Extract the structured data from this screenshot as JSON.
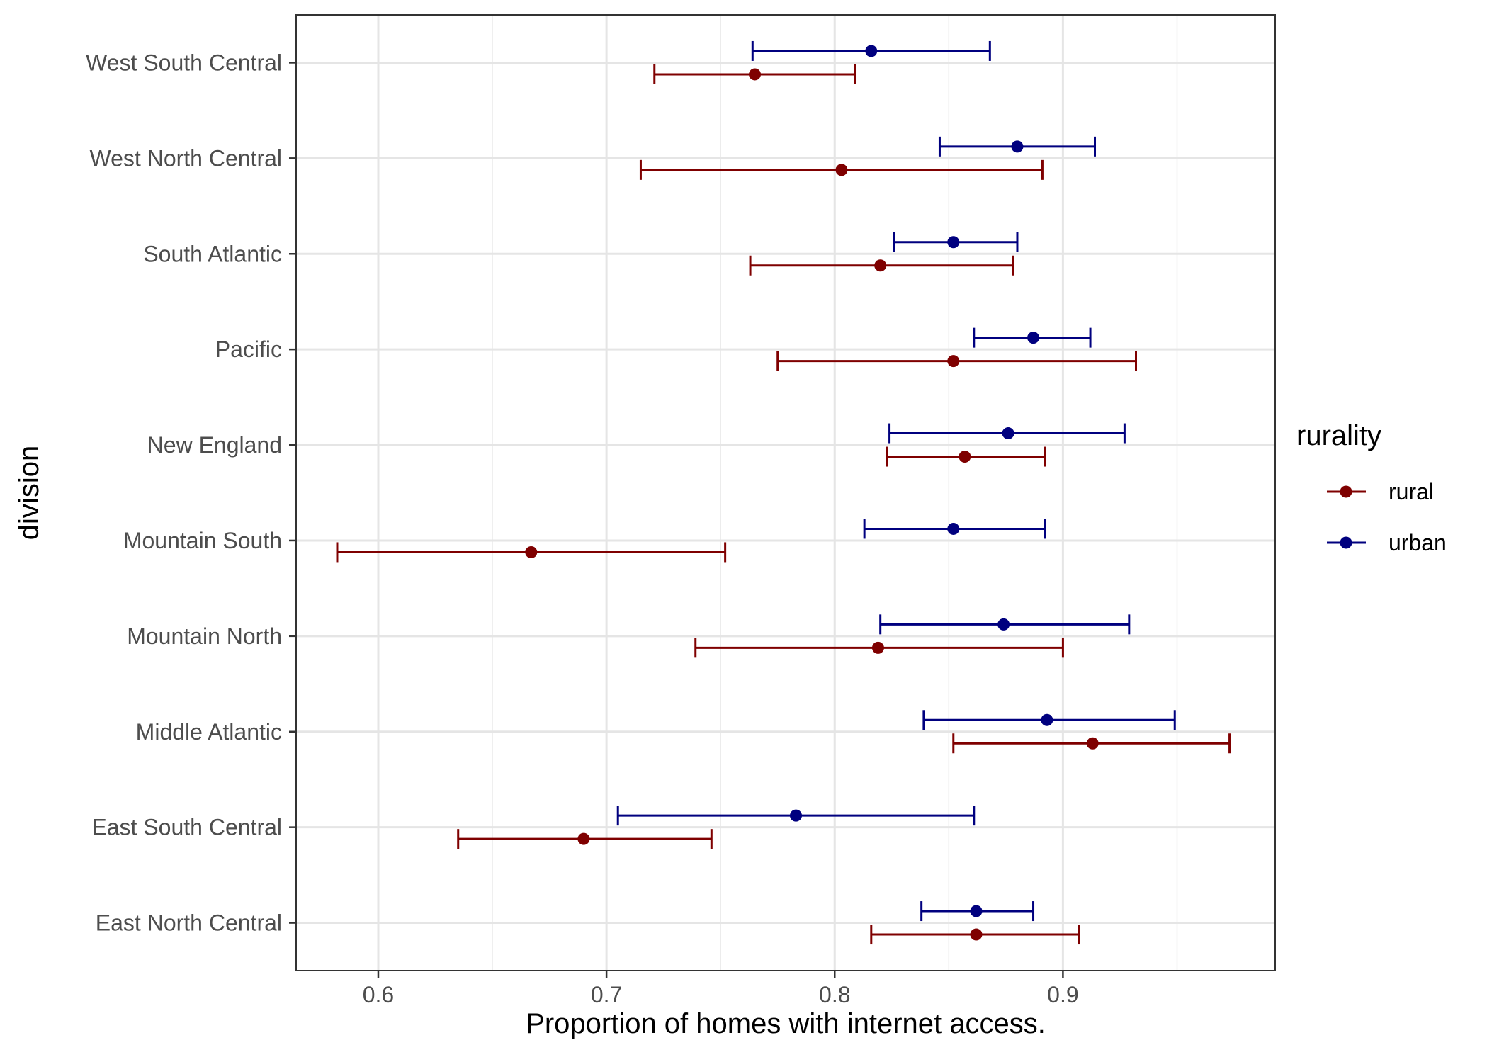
{
  "chart_data": {
    "type": "errorbar",
    "xlabel": "Proportion of homes with internet access.",
    "ylabel": "division",
    "xlim": [
      0.564,
      0.993
    ],
    "x_ticks": [
      0.6,
      0.7,
      0.8,
      0.9
    ],
    "x_tick_labels": [
      "0.6",
      "0.7",
      "0.8",
      "0.9"
    ],
    "categories": [
      "East North Central",
      "East South Central",
      "Middle Atlantic",
      "Mountain North",
      "Mountain South",
      "New England",
      "Pacific",
      "South Atlantic",
      "West North Central",
      "West South Central"
    ],
    "grid": true,
    "legend": {
      "title": "rurality",
      "position": "right"
    },
    "series": [
      {
        "name": "rural",
        "color": "#7f0000",
        "values": [
          0.862,
          0.69,
          0.913,
          0.819,
          0.667,
          0.857,
          0.852,
          0.82,
          0.803,
          0.765
        ],
        "lower": [
          0.816,
          0.635,
          0.852,
          0.739,
          0.582,
          0.823,
          0.775,
          0.763,
          0.715,
          0.721
        ],
        "upper": [
          0.907,
          0.746,
          0.973,
          0.9,
          0.752,
          0.892,
          0.932,
          0.878,
          0.891,
          0.809
        ]
      },
      {
        "name": "urban",
        "color": "#00007f",
        "values": [
          0.862,
          0.783,
          0.893,
          0.874,
          0.852,
          0.876,
          0.887,
          0.852,
          0.88,
          0.816
        ],
        "lower": [
          0.838,
          0.705,
          0.839,
          0.82,
          0.813,
          0.824,
          0.861,
          0.826,
          0.846,
          0.764
        ],
        "upper": [
          0.887,
          0.861,
          0.949,
          0.929,
          0.892,
          0.927,
          0.912,
          0.88,
          0.914,
          0.868
        ]
      }
    ]
  }
}
